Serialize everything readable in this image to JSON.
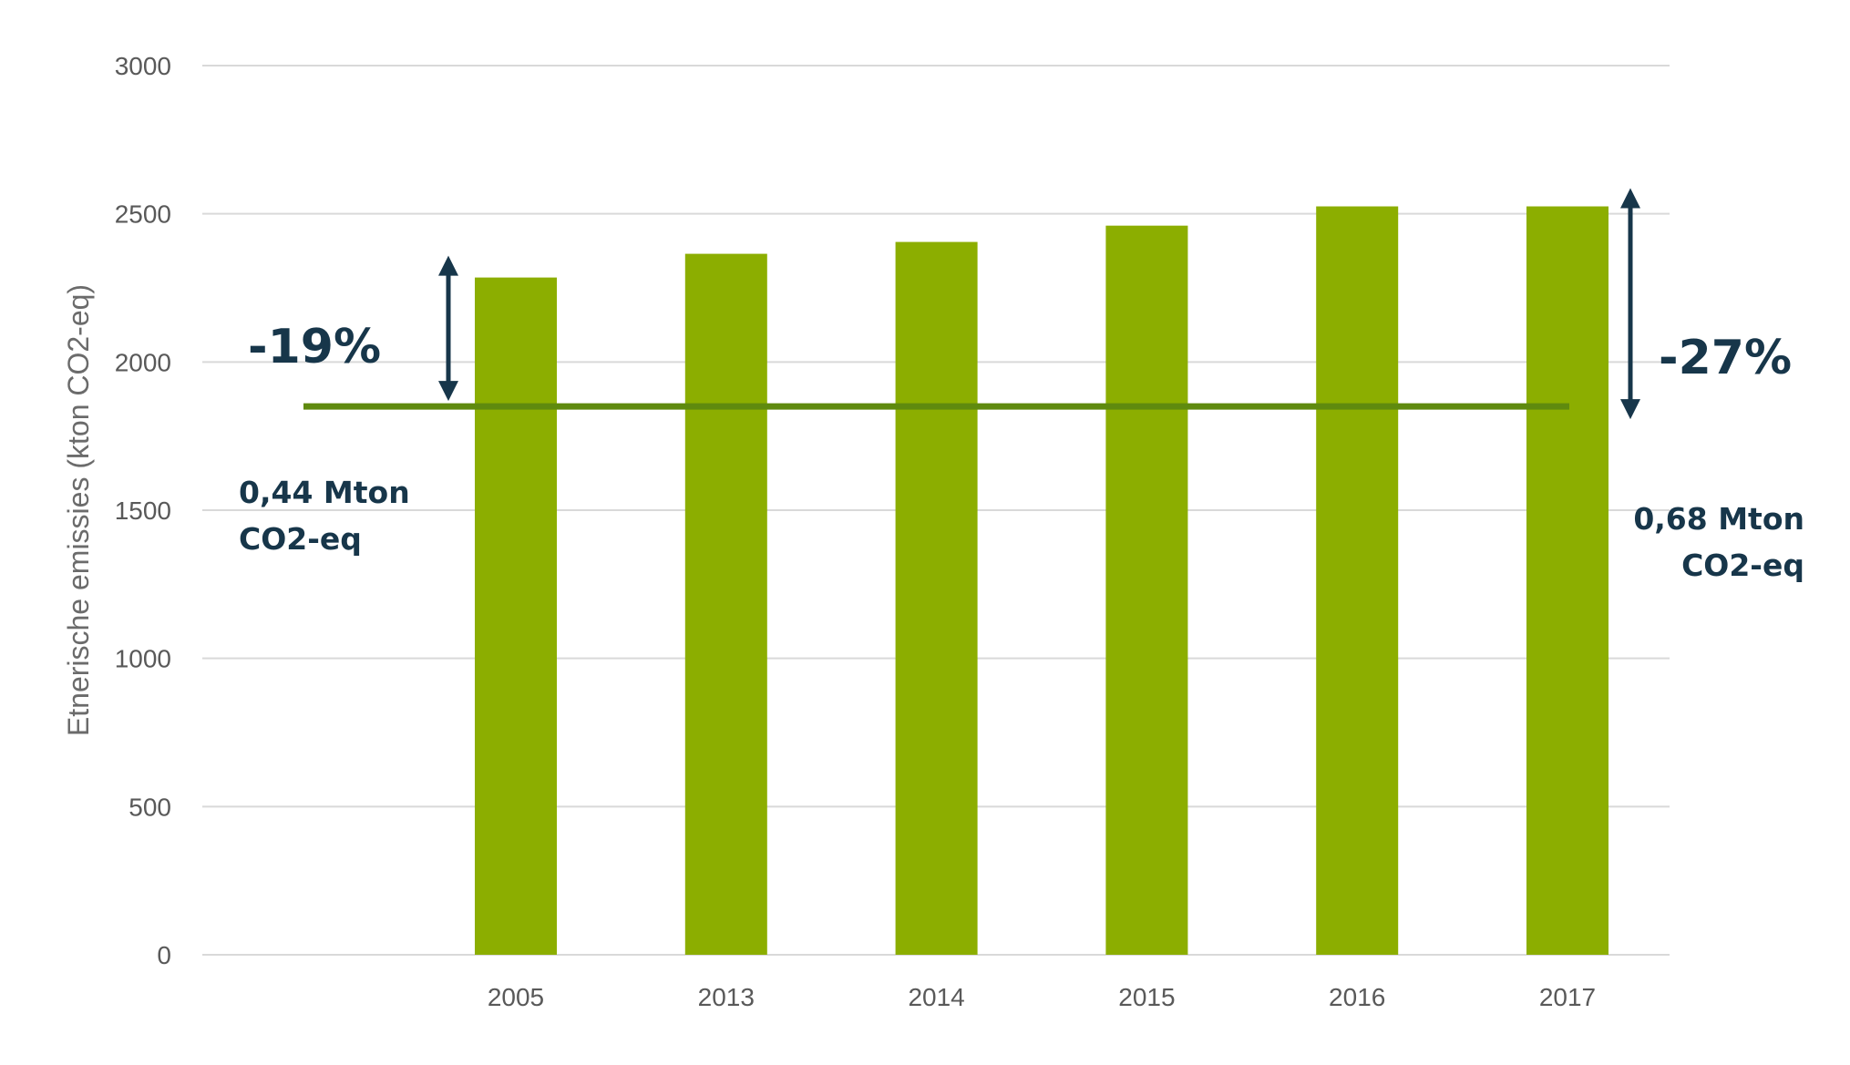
{
  "chart_data": {
    "type": "bar",
    "categories": [
      "2005",
      "2013",
      "2014",
      "2015",
      "2016",
      "2017"
    ],
    "values": [
      2285,
      2365,
      2405,
      2460,
      2525,
      2525
    ],
    "ylabel": "Etnerische emissies (kton CO2-eq)",
    "ylim": [
      0,
      3000
    ],
    "yticks": [
      0,
      500,
      1000,
      1500,
      2000,
      2500,
      3000
    ],
    "grid": true,
    "reference_line": {
      "value": 1850
    },
    "annotations": {
      "left_pct": "-19%",
      "left_amount_line1": "0,44 Mton",
      "left_amount_line2": "CO2-eq",
      "right_pct": "-27%",
      "right_amount_line1": "0,68 Mton",
      "right_amount_line2": "CO2-eq"
    },
    "colors": {
      "bar": "#8cae00",
      "reference_line": "#5f8a0e",
      "annotation": "#17364a",
      "grid": "#d9d9d9"
    }
  }
}
